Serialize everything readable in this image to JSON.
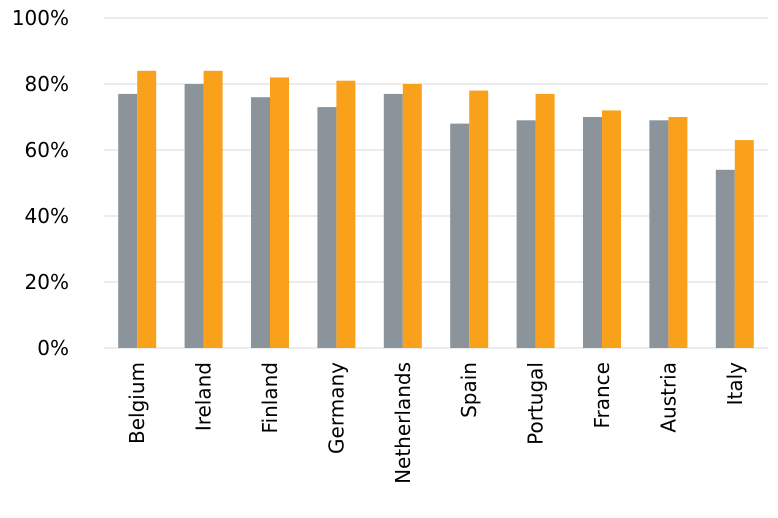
{
  "chart_data": {
    "type": "bar",
    "title": "",
    "xlabel": "",
    "ylabel": "",
    "categories": [
      "Belgium",
      "Ireland",
      "Finland",
      "Germany",
      "Netherlands",
      "Spain",
      "Portugal",
      "France",
      "Austria",
      "Italy"
    ],
    "series": [
      {
        "values": [
          0.77,
          0.8,
          0.76,
          0.73,
          0.77,
          0.68,
          0.69,
          0.7,
          0.69,
          0.54
        ],
        "color": "#8c949b"
      },
      {
        "values": [
          0.84,
          0.84,
          0.82,
          0.81,
          0.8,
          0.78,
          0.77,
          0.72,
          0.7,
          0.63
        ],
        "color": "#f9a11b"
      }
    ],
    "ylim": [
      0,
      1
    ],
    "yticks": [
      0,
      0.2,
      0.4,
      0.6,
      0.8,
      1.0
    ],
    "ytick_labels": [
      "0%",
      "20%",
      "40%",
      "60%",
      "80%",
      "100%"
    ],
    "grid": true,
    "grid_color": "#d9d9d9",
    "legend": "none"
  }
}
